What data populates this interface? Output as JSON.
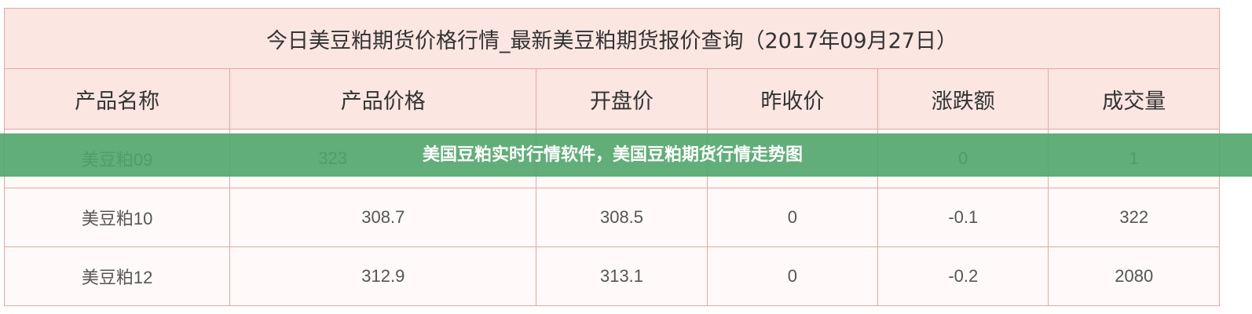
{
  "table": {
    "title": "今日美豆粕期货价格行情_最新美豆粕期货报价查询（2017年09月27日）",
    "headers": [
      "产品名称",
      "产品价格",
      "开盘价",
      "昨收价",
      "涨跌额",
      "成交量"
    ],
    "rows": [
      [
        "美豆粕09",
        "323",
        "",
        "",
        "0",
        "1"
      ],
      [
        "美豆粕10",
        "308.7",
        "308.5",
        "0",
        "-0.1",
        "322"
      ],
      [
        "美豆粕12",
        "312.9",
        "313.1",
        "0",
        "-0.2",
        "2080"
      ]
    ]
  },
  "banner": {
    "text": "美国豆粕实时行情软件，美国豆粕期货行情走势图",
    "color": "#50a569"
  }
}
